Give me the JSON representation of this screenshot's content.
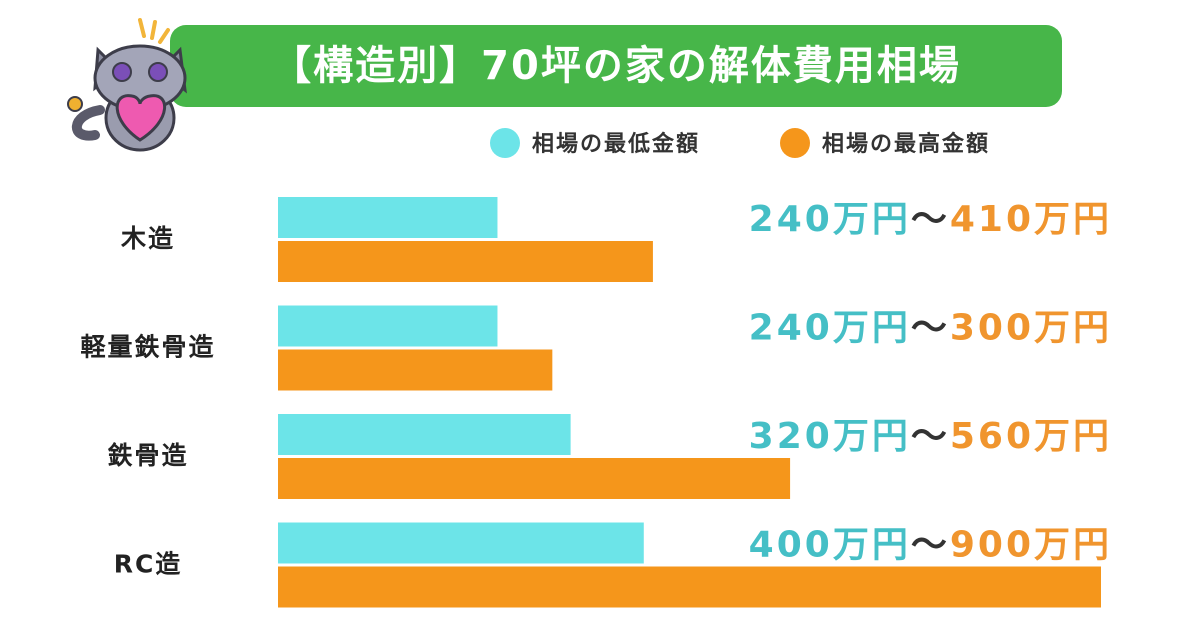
{
  "chart_data": {
    "type": "bar",
    "orientation": "horizontal",
    "title": "【構造別】70坪の家の解体費用相場",
    "categories": [
      "木造",
      "軽量鉄骨造",
      "鉄骨造",
      "RC造"
    ],
    "series": [
      {
        "name": "相場の最低金額",
        "color": "#6ce4e8",
        "label_color": "#45bfc6",
        "values": [
          240,
          240,
          320,
          400
        ],
        "value_labels": [
          "240万円",
          "240万円",
          "320万円",
          "400万円"
        ]
      },
      {
        "name": "相場の最高金額",
        "color": "#f5961b",
        "label_color": "#f0952e",
        "values": [
          410,
          300,
          560,
          900
        ],
        "value_labels": [
          "410万円",
          "300万円",
          "560万円",
          "900万円"
        ]
      }
    ],
    "range_separator": "〜",
    "title_color": "#47b649",
    "grid": false
  }
}
